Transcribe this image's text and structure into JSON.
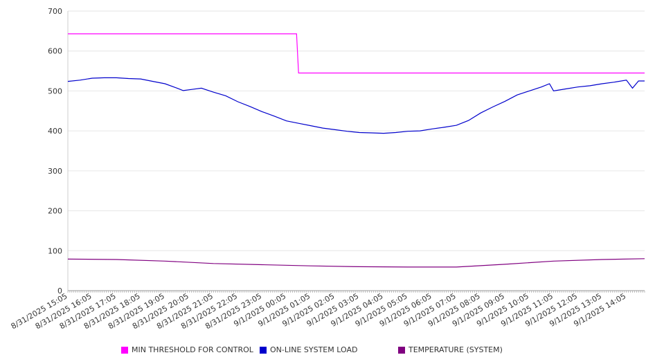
{
  "chart_data": {
    "type": "line",
    "x_tick_labels": [
      "8/31/2025 15:05",
      "8/31/2025 16:05",
      "8/31/2025 17:05",
      "8/31/2025 18:05",
      "8/31/2025 19:05",
      "8/31/2025 20:05",
      "8/31/2025 21:05",
      "8/31/2025 22:05",
      "8/31/2025 23:05",
      "9/1/2025 00:05",
      "9/1/2025 01:05",
      "9/1/2025 02:05",
      "9/1/2025 03:05",
      "9/1/2025 04:05",
      "9/1/2025 05:05",
      "9/1/2025 06:05",
      "9/1/2025 07:05",
      "9/1/2025 08:05",
      "9/1/2025 09:05",
      "9/1/2025 10:05",
      "9/1/2025 11:05",
      "9/1/2025 12:05",
      "9/1/2025 13:05",
      "9/1/2025 14:05"
    ],
    "x_range": [
      "8/31/2025 15:05",
      "9/1/2025 14:50"
    ],
    "ylim": [
      0,
      700
    ],
    "yticks": [
      0,
      100,
      200,
      300,
      400,
      500,
      600,
      700
    ],
    "grid": true,
    "legend_position": "bottom",
    "series": [
      {
        "name": "MIN THRESHOLD FOR CONTROL",
        "color": "#ff00ff",
        "points": [
          [
            "8/31/2025 15:05",
            643
          ],
          [
            "9/1/2025 00:30",
            643
          ],
          [
            "9/1/2025 00:35",
            545
          ],
          [
            "9/1/2025 14:50",
            545
          ]
        ]
      },
      {
        "name": "ON-LINE SYSTEM LOAD",
        "color": "#0000cc",
        "points": [
          [
            "8/31/2025 15:05",
            524
          ],
          [
            "8/31/2025 15:35",
            527
          ],
          [
            "8/31/2025 16:05",
            532
          ],
          [
            "8/31/2025 16:35",
            533
          ],
          [
            "8/31/2025 17:05",
            533
          ],
          [
            "8/31/2025 17:35",
            531
          ],
          [
            "8/31/2025 18:05",
            530
          ],
          [
            "8/31/2025 18:35",
            524
          ],
          [
            "8/31/2025 19:05",
            518
          ],
          [
            "8/31/2025 19:35",
            507
          ],
          [
            "8/31/2025 19:50",
            501
          ],
          [
            "8/31/2025 20:05",
            503
          ],
          [
            "8/31/2025 20:35",
            507
          ],
          [
            "8/31/2025 21:05",
            497
          ],
          [
            "8/31/2025 21:35",
            488
          ],
          [
            "8/31/2025 22:05",
            473
          ],
          [
            "8/31/2025 22:35",
            461
          ],
          [
            "8/31/2025 23:05",
            448
          ],
          [
            "8/31/2025 23:35",
            437
          ],
          [
            "9/1/2025 00:05",
            425
          ],
          [
            "9/1/2025 00:35",
            419
          ],
          [
            "9/1/2025 01:05",
            413
          ],
          [
            "9/1/2025 01:35",
            407
          ],
          [
            "9/1/2025 02:05",
            403
          ],
          [
            "9/1/2025 02:35",
            399
          ],
          [
            "9/1/2025 03:05",
            396
          ],
          [
            "9/1/2025 03:35",
            395
          ],
          [
            "9/1/2025 04:05",
            394
          ],
          [
            "9/1/2025 04:35",
            396
          ],
          [
            "9/1/2025 05:05",
            399
          ],
          [
            "9/1/2025 05:35",
            400
          ],
          [
            "9/1/2025 06:05",
            405
          ],
          [
            "9/1/2025 06:35",
            409
          ],
          [
            "9/1/2025 07:05",
            414
          ],
          [
            "9/1/2025 07:35",
            426
          ],
          [
            "9/1/2025 08:05",
            445
          ],
          [
            "9/1/2025 08:35",
            460
          ],
          [
            "9/1/2025 09:05",
            474
          ],
          [
            "9/1/2025 09:35",
            490
          ],
          [
            "9/1/2025 10:05",
            500
          ],
          [
            "9/1/2025 10:35",
            510
          ],
          [
            "9/1/2025 10:55",
            518
          ],
          [
            "9/1/2025 11:05",
            500
          ],
          [
            "9/1/2025 11:35",
            505
          ],
          [
            "9/1/2025 12:05",
            510
          ],
          [
            "9/1/2025 12:35",
            513
          ],
          [
            "9/1/2025 13:05",
            518
          ],
          [
            "9/1/2025 13:35",
            522
          ],
          [
            "9/1/2025 14:05",
            527
          ],
          [
            "9/1/2025 14:20",
            507
          ],
          [
            "9/1/2025 14:35",
            525
          ],
          [
            "9/1/2025 14:50",
            525
          ]
        ]
      },
      {
        "name": "TEMPERATURE (SYSTEM)",
        "color": "#800080",
        "points": [
          [
            "8/31/2025 15:05",
            79
          ],
          [
            "8/31/2025 17:05",
            78
          ],
          [
            "8/31/2025 19:05",
            74
          ],
          [
            "8/31/2025 21:05",
            68
          ],
          [
            "8/31/2025 23:05",
            65
          ],
          [
            "9/1/2025 01:05",
            62
          ],
          [
            "9/1/2025 03:05",
            60
          ],
          [
            "9/1/2025 05:05",
            59
          ],
          [
            "9/1/2025 07:05",
            59
          ],
          [
            "9/1/2025 09:05",
            66
          ],
          [
            "9/1/2025 11:05",
            74
          ],
          [
            "9/1/2025 13:05",
            78
          ],
          [
            "9/1/2025 14:50",
            80
          ]
        ]
      }
    ]
  }
}
